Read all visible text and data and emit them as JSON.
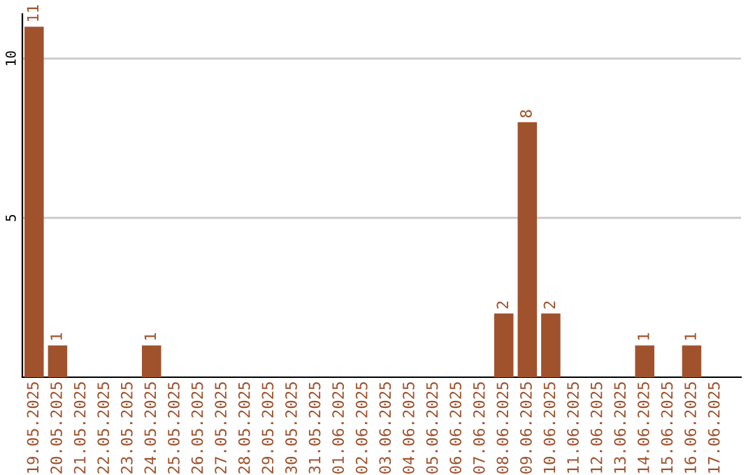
{
  "chart_data": {
    "type": "bar",
    "categories": [
      "19.05.2025",
      "20.05.2025",
      "21.05.2025",
      "22.05.2025",
      "23.05.2025",
      "24.05.2025",
      "25.05.2025",
      "26.05.2025",
      "27.05.2025",
      "28.05.2025",
      "29.05.2025",
      "30.05.2025",
      "31.05.2025",
      "01.06.2025",
      "02.06.2025",
      "03.06.2025",
      "04.06.2025",
      "05.06.2025",
      "06.06.2025",
      "07.06.2025",
      "08.06.2025",
      "09.06.2025",
      "10.06.2025",
      "11.06.2025",
      "12.06.2025",
      "13.06.2025",
      "14.06.2025",
      "15.06.2025",
      "16.06.2025",
      "17.06.2025"
    ],
    "values": [
      11,
      1,
      0,
      0,
      0,
      1,
      0,
      0,
      0,
      0,
      0,
      0,
      0,
      0,
      0,
      0,
      0,
      0,
      0,
      0,
      2,
      8,
      2,
      0,
      0,
      0,
      1,
      0,
      1,
      0
    ],
    "value_labels": [
      "11",
      "1",
      null,
      null,
      null,
      "1",
      null,
      null,
      null,
      null,
      null,
      null,
      null,
      null,
      null,
      null,
      null,
      null,
      null,
      null,
      "2",
      "8",
      "2",
      null,
      null,
      null,
      "1",
      null,
      "1",
      null
    ],
    "color": "#a0522d",
    "ylim": [
      0,
      11.4
    ],
    "yticks": [
      5,
      10
    ],
    "grid": "y"
  }
}
